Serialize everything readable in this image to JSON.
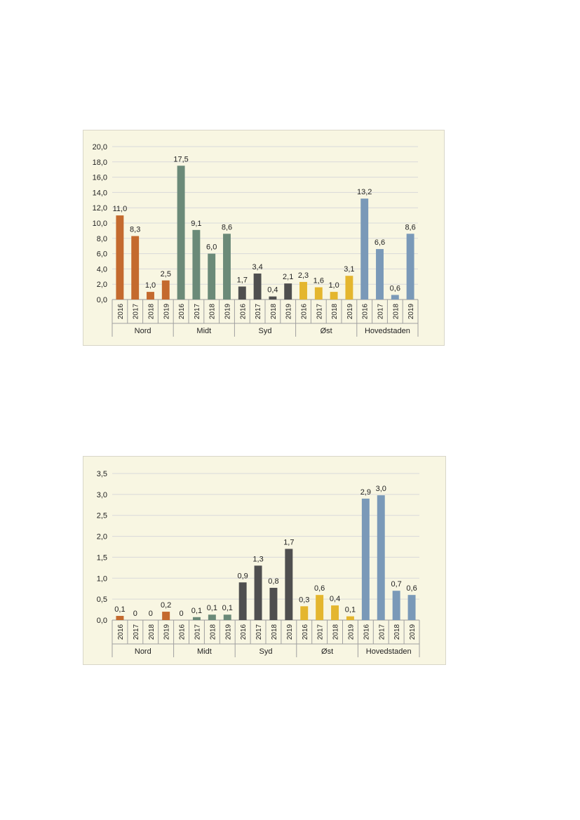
{
  "colors": {
    "Nord": "#c46a2e",
    "Midt": "#6b8a78",
    "Syd": "#4f4f4f",
    "Øst": "#e4b62e",
    "Hovedstaden": "#7a99b8",
    "panel_background": "#f8f6e2",
    "gridline": "#d9d9d9"
  },
  "chart_data": [
    {
      "type": "bar",
      "title": "",
      "xlabel": "",
      "ylabel": "",
      "ylim": [
        0,
        20
      ],
      "ytick_step": 2,
      "ytick_labels": [
        "0,0",
        "2,0",
        "4,0",
        "6,0",
        "8,0",
        "10,0",
        "12,0",
        "14,0",
        "16,0",
        "18,0",
        "20,0"
      ],
      "grid": true,
      "legend": "none",
      "groups": [
        {
          "name": "Nord",
          "years": [
            "2016",
            "2017",
            "2018",
            "2019"
          ],
          "values": [
            11.0,
            8.3,
            1.0,
            2.5
          ],
          "labels": [
            "11,0",
            "8,3",
            "1,0",
            "2,5"
          ]
        },
        {
          "name": "Midt",
          "years": [
            "2016",
            "2017",
            "2018",
            "2019"
          ],
          "values": [
            17.5,
            9.1,
            6.0,
            8.6
          ],
          "labels": [
            "17,5",
            "9,1",
            "6,0",
            "8,6"
          ]
        },
        {
          "name": "Syd",
          "years": [
            "2016",
            "2017",
            "2018",
            "2019"
          ],
          "values": [
            1.7,
            3.4,
            0.4,
            2.1
          ],
          "labels": [
            "1,7",
            "3,4",
            "0,4",
            "2,1"
          ]
        },
        {
          "name": "Øst",
          "years": [
            "2016",
            "2017",
            "2018",
            "2019"
          ],
          "values": [
            2.3,
            1.6,
            1.0,
            3.1
          ],
          "labels": [
            "2,3",
            "1,6",
            "1,0",
            "3,1"
          ]
        },
        {
          "name": "Hovedstaden",
          "years": [
            "2016",
            "2017",
            "2018",
            "2019"
          ],
          "values": [
            13.2,
            6.6,
            0.6,
            8.6
          ],
          "labels": [
            "13,2",
            "6,6",
            "0,6",
            "8,6"
          ]
        }
      ]
    },
    {
      "type": "bar",
      "title": "",
      "xlabel": "",
      "ylabel": "",
      "ylim": [
        0,
        3.5
      ],
      "ytick_step": 0.5,
      "ytick_labels": [
        "0,0",
        "0,5",
        "1,0",
        "1,5",
        "2,0",
        "2,5",
        "3,0",
        "3,5"
      ],
      "grid": true,
      "legend": "none",
      "groups": [
        {
          "name": "Nord",
          "years": [
            "2016",
            "2017",
            "2018",
            "2019"
          ],
          "values": [
            0.1,
            0,
            0,
            0.2
          ],
          "labels": [
            "0,1",
            "0",
            "0",
            "0,2"
          ]
        },
        {
          "name": "Midt",
          "years": [
            "2016",
            "2017",
            "2018",
            "2019"
          ],
          "values": [
            0,
            0.07,
            0.13,
            0.13
          ],
          "labels": [
            "0",
            "0,1",
            "0,1",
            "0,1"
          ]
        },
        {
          "name": "Syd",
          "years": [
            "2016",
            "2017",
            "2018",
            "2019"
          ],
          "values": [
            0.9,
            1.3,
            0.77,
            1.7
          ],
          "labels": [
            "0,9",
            "1,3",
            "0,8",
            "1,7"
          ]
        },
        {
          "name": "Øst",
          "years": [
            "2016",
            "2017",
            "2018",
            "2019"
          ],
          "values": [
            0.33,
            0.6,
            0.35,
            0.09
          ],
          "labels": [
            "0,3",
            "0,6",
            "0,4",
            "0,1"
          ]
        },
        {
          "name": "Hovedstaden",
          "years": [
            "2016",
            "2017",
            "2018",
            "2019"
          ],
          "values": [
            2.9,
            2.98,
            0.7,
            0.6
          ],
          "labels": [
            "2,9",
            "3,0",
            "0,7",
            "0,6"
          ]
        }
      ]
    }
  ]
}
